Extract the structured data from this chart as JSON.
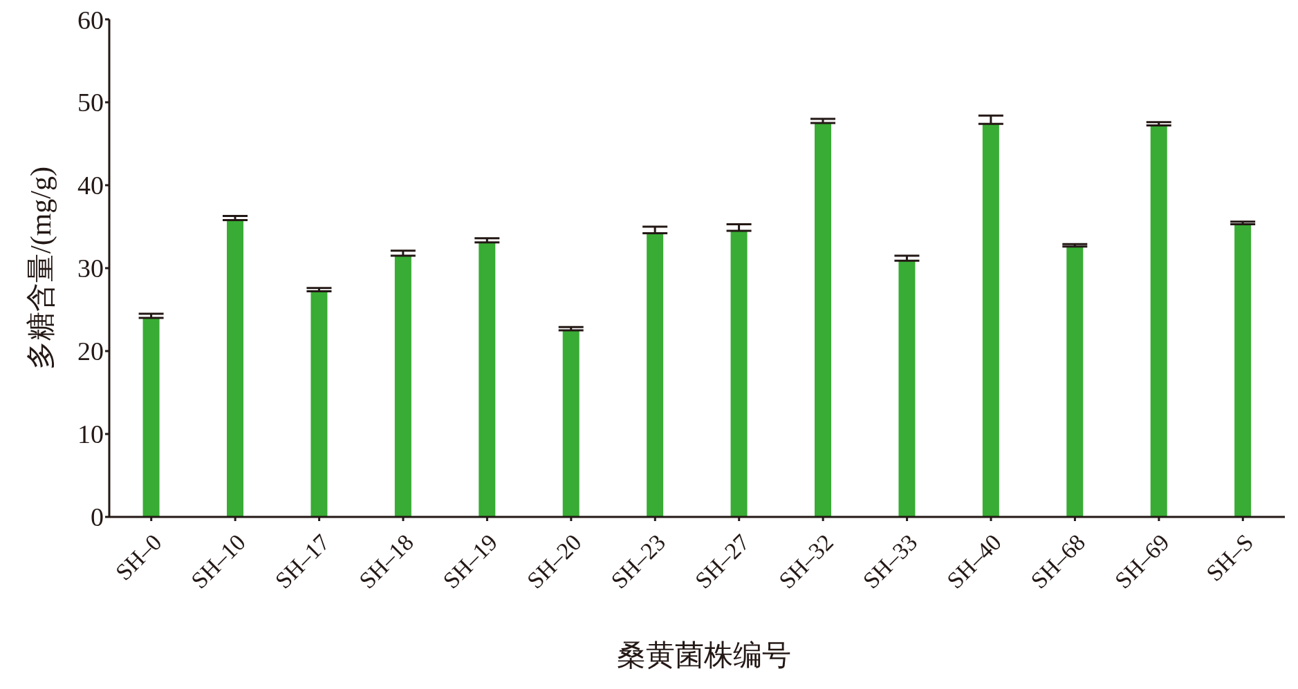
{
  "chart_data": {
    "type": "bar",
    "xlabel": "桑黄菌株编号",
    "ylabel": "多糖含量/(mg/g)",
    "categories": [
      "SH–0",
      "SH–10",
      "SH–17",
      "SH–18",
      "SH–19",
      "SH–20",
      "SH–23",
      "SH–27",
      "SH–32",
      "SH–33",
      "SH–40",
      "SH–68",
      "SH–69",
      "SH–S"
    ],
    "values": [
      24.0,
      35.8,
      27.2,
      31.5,
      33.1,
      22.5,
      34.2,
      34.5,
      47.5,
      30.9,
      47.4,
      32.6,
      47.2,
      35.3
    ],
    "errors": [
      [
        24.0,
        24.5
      ],
      [
        35.8,
        36.3
      ],
      [
        27.2,
        27.6
      ],
      [
        31.5,
        32.1
      ],
      [
        33.1,
        33.6
      ],
      [
        22.5,
        22.9
      ],
      [
        34.2,
        35.0
      ],
      [
        34.5,
        35.3
      ],
      [
        47.5,
        48.0
      ],
      [
        30.9,
        31.5
      ],
      [
        47.4,
        48.4
      ],
      [
        32.6,
        32.9
      ],
      [
        47.2,
        47.6
      ],
      [
        35.3,
        35.6
      ]
    ],
    "color": "#38ac34",
    "ylim": [
      0,
      60
    ],
    "yticks": [
      0,
      10,
      20,
      30,
      40,
      50,
      60
    ],
    "grid": false,
    "legend": false
  }
}
